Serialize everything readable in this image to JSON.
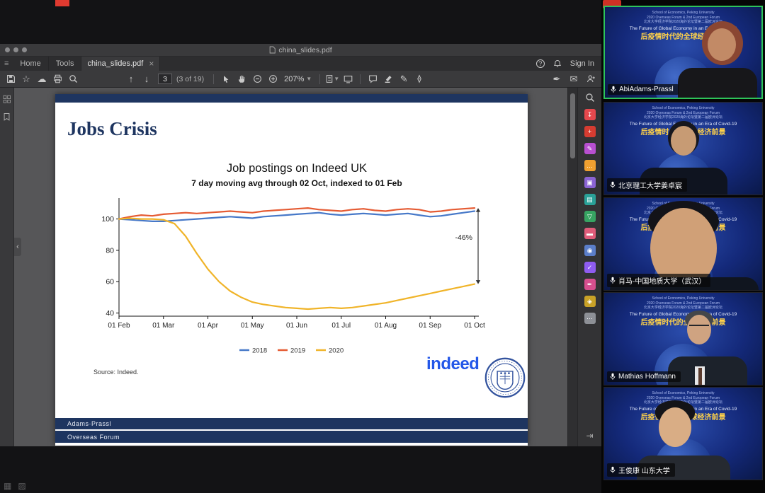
{
  "acrobat": {
    "window_title": "china_slides.pdf",
    "tabs": {
      "home": "Home",
      "tools": "Tools",
      "document": "china_slides.pdf"
    },
    "sign_in": "Sign In",
    "toolbar": {
      "page_number": "3",
      "page_count": "(3 of 19)",
      "zoom": "207%"
    }
  },
  "slide": {
    "title": "Jobs Crisis",
    "source": "Source: Indeed.",
    "indeed_logo": "indeed",
    "footer_line1": "Adams·Prassl",
    "footer_line2": "Overseas Forum"
  },
  "chart_data": {
    "type": "line",
    "title": "Job postings on Indeed UK",
    "subtitle": "7 day moving avg through 02 Oct, indexed to 01 Feb",
    "x_tick_labels": [
      "01 Feb",
      "01 Mar",
      "01 Apr",
      "01 May",
      "01 Jun",
      "01 Jul",
      "01 Aug",
      "01 Sep",
      "01 Oct"
    ],
    "y_ticks": [
      40,
      60,
      80,
      100
    ],
    "xlim": [
      0,
      8
    ],
    "ylim": [
      38,
      112
    ],
    "grid": false,
    "legend_position": "bottom",
    "x": [
      0,
      0.25,
      0.5,
      0.75,
      1,
      1.25,
      1.5,
      1.75,
      2,
      2.25,
      2.5,
      2.75,
      3,
      3.25,
      3.5,
      3.75,
      4,
      4.25,
      4.5,
      4.75,
      5,
      5.25,
      5.5,
      5.75,
      6,
      6.25,
      6.5,
      6.75,
      7,
      7.25,
      7.5,
      7.75,
      8
    ],
    "series": [
      {
        "name": "2018",
        "color": "#4678c8",
        "values": [
          100,
          99.5,
          99,
          98.5,
          98.5,
          99,
          99.5,
          100,
          100.5,
          101,
          101.5,
          101,
          100.5,
          101.5,
          102,
          102.5,
          103,
          103.5,
          104,
          103,
          102.5,
          103,
          103.5,
          103,
          102.5,
          103,
          103.5,
          102.5,
          101.5,
          102,
          103,
          104,
          105
        ]
      },
      {
        "name": "2019",
        "color": "#e55b33",
        "values": [
          100,
          101.5,
          102.5,
          102,
          103,
          103.5,
          104,
          103.5,
          104,
          104.5,
          105,
          104.5,
          104,
          105,
          105.5,
          106,
          106.5,
          107,
          106,
          105.5,
          105,
          106,
          106.5,
          105.5,
          105,
          106,
          106.5,
          106,
          104.5,
          105,
          106,
          106.5,
          107
        ]
      },
      {
        "name": "2020",
        "color": "#f0b429",
        "values": [
          100,
          100.5,
          100,
          100,
          99.5,
          97,
          89,
          78,
          68,
          60,
          54,
          50,
          47,
          45.5,
          44.5,
          43.5,
          43,
          42.5,
          43,
          43.5,
          43,
          43.5,
          44.5,
          45.5,
          46.5,
          48,
          49.5,
          51,
          52.5,
          54,
          55.5,
          57,
          58.5
        ]
      }
    ],
    "annotation": {
      "label": "-46%",
      "x": 8,
      "y_top": 107,
      "y_bottom": 58.5
    }
  },
  "right_tools": [
    {
      "name": "search-tool",
      "color": "",
      "glyph": ""
    },
    {
      "name": "export-pdf",
      "color": "#e5484d",
      "glyph": "↧"
    },
    {
      "name": "create-pdf",
      "color": "#d63c31",
      "glyph": "+"
    },
    {
      "name": "edit-pdf",
      "color": "#b84fd0",
      "glyph": "✎"
    },
    {
      "name": "comment",
      "color": "#f0a030",
      "glyph": "…"
    },
    {
      "name": "combine-files",
      "color": "#8a63d2",
      "glyph": "▣"
    },
    {
      "name": "organize-pages",
      "color": "#2aa198",
      "glyph": "▤"
    },
    {
      "name": "compress-pdf",
      "color": "#37a462",
      "glyph": "▽"
    },
    {
      "name": "redact",
      "color": "#e05c7a",
      "glyph": "▬"
    },
    {
      "name": "protect",
      "color": "#5b7ec9",
      "glyph": "◉"
    },
    {
      "name": "fill-and-sign",
      "color": "#8f5cf0",
      "glyph": "✓"
    },
    {
      "name": "request-signatures",
      "color": "#d64f8e",
      "glyph": "✒"
    },
    {
      "name": "stamp",
      "color": "#c9a227",
      "glyph": "◈"
    },
    {
      "name": "more-tools",
      "color": "#8d9096",
      "glyph": "⋯"
    }
  ],
  "video_strip": {
    "slide_lines": [
      "School of Economics, Peking University",
      "2020 Overseas Forum & 2nd European Forum",
      "北京大学经济学院2020海外论坛暨第二届欧洲论坛",
      "The Future of Global Economy in an Era of Covid-19",
      "后疫情时代的全球经济前景"
    ],
    "participants": [
      {
        "name": "AbiAdams-Prassl",
        "speaking": true
      },
      {
        "name": "北京理工大学姜卓宸",
        "speaking": false
      },
      {
        "name": "肖马-中国地质大学（武汉）",
        "speaking": false
      },
      {
        "name": "Mathias Hoffmann",
        "speaking": false
      },
      {
        "name": "王俊康 山东大学",
        "speaking": false
      }
    ]
  },
  "colors": {
    "active_speaker_border": "#2ec45a",
    "slide_navy": "#1e3560",
    "indeed_blue": "#2357e8",
    "series_2018": "#4678c8",
    "series_2019": "#e55b33",
    "series_2020": "#f0b429"
  }
}
